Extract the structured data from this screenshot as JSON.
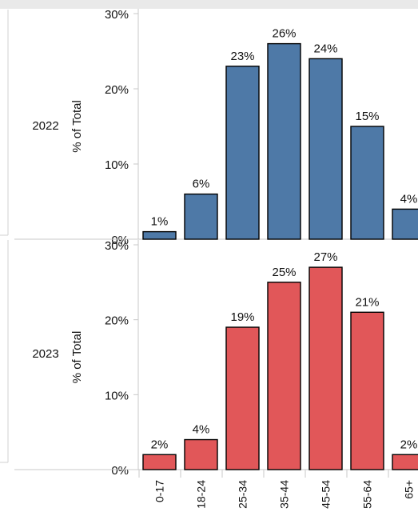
{
  "chart_data": {
    "type": "bar",
    "ylabel": "% of Total",
    "yticks": [
      "0%",
      "10%",
      "20%",
      "30%"
    ],
    "ylim": [
      0,
      30
    ],
    "categories": [
      "0-17",
      "18-24",
      "25-34",
      "35-44",
      "45-54",
      "55-64",
      "65+"
    ],
    "panels": [
      {
        "row_label": "2022",
        "color": "#4e79a7",
        "values": [
          1,
          6,
          23,
          26,
          24,
          15,
          4
        ],
        "value_labels": [
          "1%",
          "6%",
          "23%",
          "26%",
          "24%",
          "15%",
          "4%"
        ]
      },
      {
        "row_label": "2023",
        "color": "#e15759",
        "values": [
          2,
          4,
          19,
          25,
          27,
          21,
          2
        ],
        "value_labels": [
          "2%",
          "4%",
          "19%",
          "25%",
          "27%",
          "21%",
          "2%"
        ]
      }
    ]
  }
}
